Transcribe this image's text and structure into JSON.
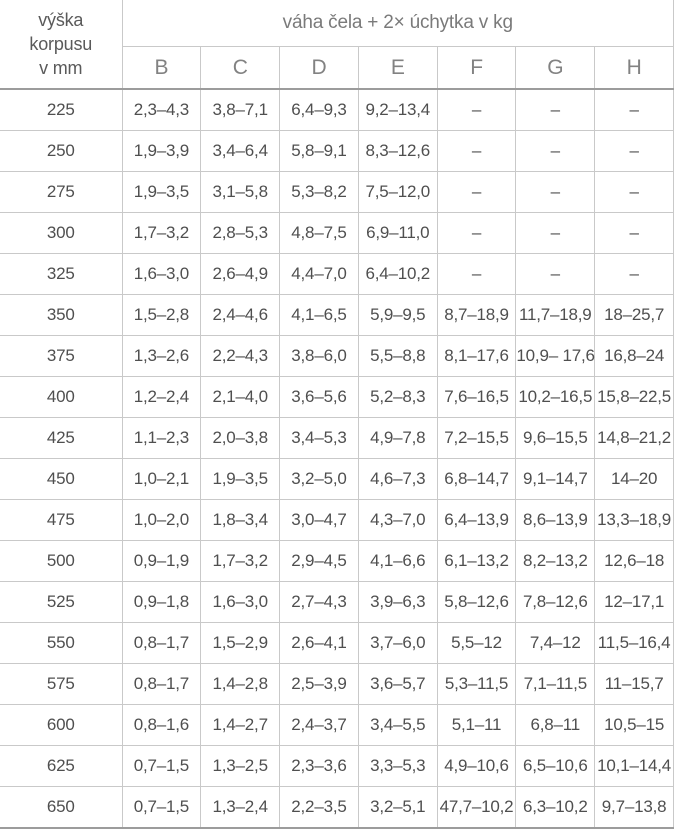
{
  "table": {
    "row_header": "výška\nkorpusu\nv mm",
    "span_header": "váha čela + 2× úchytka v kg",
    "columns": [
      "B",
      "C",
      "D",
      "E",
      "F",
      "G",
      "H"
    ],
    "empty_marker": "–",
    "rows": [
      {
        "height": "225",
        "values": [
          "2,3–4,3",
          "3,8–7,1",
          "6,4–9,3",
          "9,2–13,4",
          "–",
          "–",
          "–"
        ]
      },
      {
        "height": "250",
        "values": [
          "1,9–3,9",
          "3,4–6,4",
          "5,8–9,1",
          "8,3–12,6",
          "–",
          "–",
          "–"
        ]
      },
      {
        "height": "275",
        "values": [
          "1,9–3,5",
          "3,1–5,8",
          "5,3–8,2",
          "7,5–12,0",
          "–",
          "–",
          "–"
        ]
      },
      {
        "height": "300",
        "values": [
          "1,7–3,2",
          "2,8–5,3",
          "4,8–7,5",
          "6,9–11,0",
          "–",
          "–",
          "–"
        ]
      },
      {
        "height": "325",
        "values": [
          "1,6–3,0",
          "2,6–4,9",
          "4,4–7,0",
          "6,4–10,2",
          "–",
          "–",
          "–"
        ]
      },
      {
        "height": "350",
        "values": [
          "1,5–2,8",
          "2,4–4,6",
          "4,1–6,5",
          "5,9–9,5",
          "8,7–18,9",
          "11,7–18,9",
          "18–25,7"
        ]
      },
      {
        "height": "375",
        "values": [
          "1,3–2,6",
          "2,2–4,3",
          "3,8–6,0",
          "5,5–8,8",
          "8,1–17,6",
          "10,9– 17,6",
          "16,8–24"
        ]
      },
      {
        "height": "400",
        "values": [
          "1,2–2,4",
          "2,1–4,0",
          "3,6–5,6",
          "5,2–8,3",
          "7,6–16,5",
          "10,2–16,5",
          "15,8–22,5"
        ]
      },
      {
        "height": "425",
        "values": [
          "1,1–2,3",
          "2,0–3,8",
          "3,4–5,3",
          "4,9–7,8",
          "7,2–15,5",
          "9,6–15,5",
          "14,8–21,2"
        ]
      },
      {
        "height": "450",
        "values": [
          "1,0–2,1",
          "1,9–3,5",
          "3,2–5,0",
          "4,6–7,3",
          "6,8–14,7",
          "9,1–14,7",
          "14–20"
        ]
      },
      {
        "height": "475",
        "values": [
          "1,0–2,0",
          "1,8–3,4",
          "3,0–4,7",
          "4,3–7,0",
          "6,4–13,9",
          "8,6–13,9",
          "13,3–18,9"
        ]
      },
      {
        "height": "500",
        "values": [
          "0,9–1,9",
          "1,7–3,2",
          "2,9–4,5",
          "4,1–6,6",
          "6,1–13,2",
          "8,2–13,2",
          "12,6–18"
        ]
      },
      {
        "height": "525",
        "values": [
          "0,9–1,8",
          "1,6–3,0",
          "2,7–4,3",
          "3,9–6,3",
          "5,8–12,6",
          "7,8–12,6",
          "12–17,1"
        ]
      },
      {
        "height": "550",
        "values": [
          "0,8–1,7",
          "1,5–2,9",
          "2,6–4,1",
          "3,7–6,0",
          "5,5–12",
          "7,4–12",
          "11,5–16,4"
        ]
      },
      {
        "height": "575",
        "values": [
          "0,8–1,7",
          "1,4–2,8",
          "2,5–3,9",
          "3,6–5,7",
          "5,3–11,5",
          "7,1–11,5",
          "11–15,7"
        ]
      },
      {
        "height": "600",
        "values": [
          "0,8–1,6",
          "1,4–2,7",
          "2,4–3,7",
          "3,4–5,5",
          "5,1–11",
          "6,8–11",
          "10,5–15"
        ]
      },
      {
        "height": "625",
        "values": [
          "0,7–1,5",
          "1,3–2,5",
          "2,3–3,6",
          "3,3–5,3",
          "4,9–10,6",
          "6,5–10,6",
          "10,1–14,4"
        ]
      },
      {
        "height": "650",
        "values": [
          "0,7–1,5",
          "1,3–2,4",
          "2,2–3,5",
          "3,2–5,1",
          "47,7–10,2",
          "6,3–10,2",
          "9,7–13,8"
        ]
      }
    ]
  }
}
